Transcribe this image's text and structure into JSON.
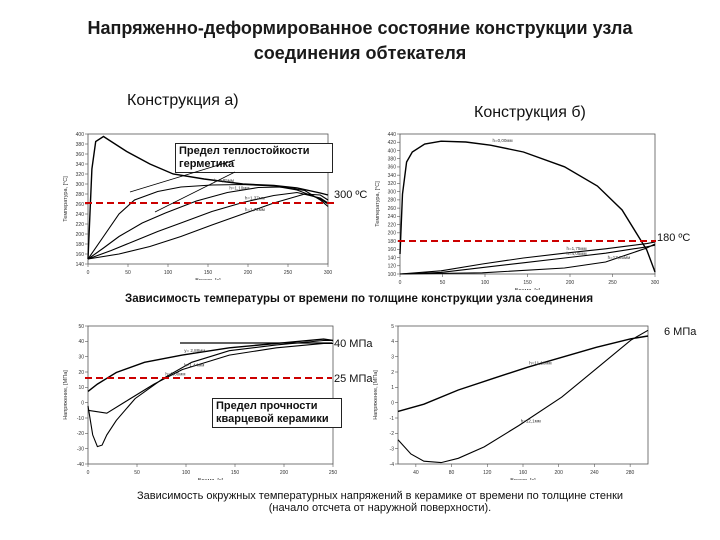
{
  "title": {
    "line1": "Напряженно-деформированное состояние конструкции узла",
    "line2": "соединения обтекателя"
  },
  "construction_a_label": "Конструкция а)",
  "construction_b_label": "Конструкция б)",
  "temp_caption": "Зависимость температуры от времени по толщине конструкции узла соединения",
  "stress_caption_line1": "Зависимость окружных температурных напряжений в керамике от времени по толщине стенки",
  "stress_caption_line2": "(начало отсчета от наружной поверхности).",
  "annotations": {
    "sealant_limit": "Предел теплостойкости герметика",
    "temp_300": "300 ºС",
    "temp_180": "180 ºС",
    "stress_40": "40 МПа",
    "stress_25": "25 МПа",
    "stress_6": "6 МПа",
    "ceramic_limit": "Предел прочности кварцевой керамики"
  },
  "colors": {
    "limit_line": "#cc0000",
    "curve": "#000000",
    "box_border": "#222222"
  },
  "chart_data": [
    {
      "type": "line",
      "panel": "temperature-a",
      "xlabel": "Время, [с]",
      "ylabel": "Температура, [°С]",
      "x_ticks": [
        "0",
        "50",
        "100",
        "150",
        "200",
        "250",
        "300"
      ],
      "y_ticks": [
        "140",
        "160",
        "180",
        "200",
        "220",
        "240",
        "260",
        "280",
        "300",
        "320",
        "340",
        "360",
        "380",
        "400"
      ],
      "xlim": [
        0,
        310
      ],
      "ylim": [
        140,
        400
      ],
      "series": [
        {
          "name": "h=0,0мм",
          "x": [
            0,
            5,
            10,
            20,
            30,
            50,
            80,
            110,
            150,
            200,
            240,
            270,
            300,
            310
          ],
          "y": [
            150,
            330,
            385,
            395,
            385,
            365,
            340,
            320,
            310,
            300,
            297,
            292,
            282,
            278
          ]
        },
        {
          "name": "h=0,85мм",
          "x": [
            0,
            20,
            40,
            60,
            90,
            120,
            160,
            200,
            240,
            270,
            300,
            310
          ],
          "y": [
            150,
            195,
            240,
            268,
            285,
            294,
            298,
            299,
            296,
            288,
            270,
            260
          ]
        },
        {
          "name": "h=1,10мм",
          "x": [
            0,
            20,
            40,
            70,
            100,
            140,
            180,
            220,
            250,
            280,
            300,
            310
          ],
          "y": [
            150,
            172,
            195,
            222,
            242,
            266,
            283,
            293,
            294,
            287,
            268,
            255
          ]
        },
        {
          "name": "h=1,37мм",
          "x": [
            0,
            30,
            60,
            90,
            120,
            160,
            200,
            240,
            270,
            300,
            310
          ],
          "y": [
            150,
            167,
            186,
            205,
            222,
            245,
            263,
            277,
            283,
            272,
            262
          ]
        },
        {
          "name": "h=1,72мм",
          "x": [
            0,
            40,
            80,
            120,
            160,
            200,
            240,
            280,
            300,
            310
          ],
          "y": [
            150,
            160,
            175,
            195,
            218,
            240,
            262,
            280,
            278,
            268
          ]
        }
      ],
      "limit_line": 300
    },
    {
      "type": "line",
      "panel": "temperature-b",
      "xlabel": "Время, [с]",
      "ylabel": "Температура, [°С]",
      "x_ticks": [
        "0",
        "50",
        "100",
        "150",
        "200",
        "250",
        "300"
      ],
      "y_ticks": [
        "100",
        "120",
        "140",
        "160",
        "180",
        "200",
        "220",
        "240",
        "260",
        "280",
        "300",
        "320",
        "340",
        "360",
        "380",
        "400",
        "420",
        "440"
      ],
      "xlim": [
        0,
        310
      ],
      "ylim": [
        100,
        450
      ],
      "series": [
        {
          "name": "h=0,00мм",
          "x": [
            0,
            3,
            8,
            15,
            30,
            50,
            80,
            110,
            150,
            200,
            240,
            270,
            300,
            310
          ],
          "y": [
            150,
            300,
            380,
            405,
            425,
            432,
            430,
            422,
            405,
            368,
            320,
            260,
            160,
            105
          ]
        },
        {
          "name": "h=1,75мм",
          "x": [
            0,
            50,
            100,
            150,
            200,
            250,
            300,
            310
          ],
          "y": [
            100,
            108,
            125,
            140,
            152,
            163,
            176,
            180
          ]
        },
        {
          "name": "h=4,05мм",
          "x": [
            0,
            50,
            100,
            150,
            200,
            250,
            300,
            310
          ],
          "y": [
            100,
            104,
            116,
            128,
            140,
            152,
            168,
            172
          ]
        },
        {
          "name": "h=17,85мм",
          "x": [
            0,
            100,
            200,
            250,
            300,
            310
          ],
          "y": [
            100,
            103,
            115,
            130,
            165,
            175
          ]
        }
      ],
      "limit_line": 180
    },
    {
      "type": "line",
      "panel": "stress-a",
      "xlabel": "Время, [с]",
      "ylabel": "Напряжение, [МПа]",
      "x_ticks": [
        "0",
        "50",
        "100",
        "150",
        "200",
        "250"
      ],
      "y_ticks": [
        "-40",
        "-30",
        "-20",
        "-10",
        "0",
        "10",
        "20",
        "30",
        "40",
        "50"
      ],
      "xlim": [
        0,
        260
      ],
      "ylim": [
        -45,
        50
      ],
      "series": [
        {
          "name": "y= 2,88мм",
          "x": [
            0,
            10,
            30,
            60,
            100,
            150,
            200,
            250,
            260
          ],
          "y": [
            5,
            10,
            18,
            25,
            30,
            35,
            38,
            41,
            40
          ]
        },
        {
          "name": "h=0,00мм",
          "x": [
            0,
            5,
            10,
            15,
            20,
            30,
            50,
            80,
            110,
            150,
            200,
            250,
            260
          ],
          "y": [
            -5,
            -25,
            -33,
            -32,
            -25,
            -15,
            0,
            14,
            25,
            33,
            37,
            40,
            40
          ]
        },
        {
          "name": "h=1,44мм",
          "x": [
            0,
            20,
            40,
            70,
            100,
            150,
            200,
            250,
            260
          ],
          "y": [
            -8,
            -10,
            -2,
            10,
            20,
            30,
            35,
            38,
            38
          ]
        }
      ],
      "limit_lines": [
        40,
        25
      ]
    },
    {
      "type": "line",
      "panel": "stress-b",
      "xlabel": "Время, [с]",
      "ylabel": "Напряжение, [МПа]",
      "x_ticks": [
        "40",
        "80",
        "120",
        "160",
        "200",
        "240",
        "280"
      ],
      "y_ticks": [
        "-4",
        "-3",
        "-2",
        "-1",
        "0",
        "1",
        "2",
        "3",
        "4",
        "5"
      ],
      "xlim": [
        10,
        300
      ],
      "ylim": [
        -4.2,
        5.5
      ],
      "series": [
        {
          "name": "h=11,10мм",
          "x": [
            10,
            40,
            80,
            120,
            160,
            200,
            240,
            280,
            300
          ],
          "y": [
            -0.5,
            0,
            1,
            1.8,
            2.6,
            3.3,
            4,
            4.6,
            4.8
          ]
        },
        {
          "name": "h=12,1мм",
          "x": [
            10,
            25,
            40,
            60,
            80,
            110,
            150,
            200,
            240,
            280,
            300
          ],
          "y": [
            -2.5,
            -3.5,
            -4.0,
            -4.1,
            -3.8,
            -3.0,
            -1.5,
            0.5,
            2.5,
            4.5,
            5.2
          ]
        }
      ],
      "limit_lines": [
        6
      ]
    }
  ]
}
